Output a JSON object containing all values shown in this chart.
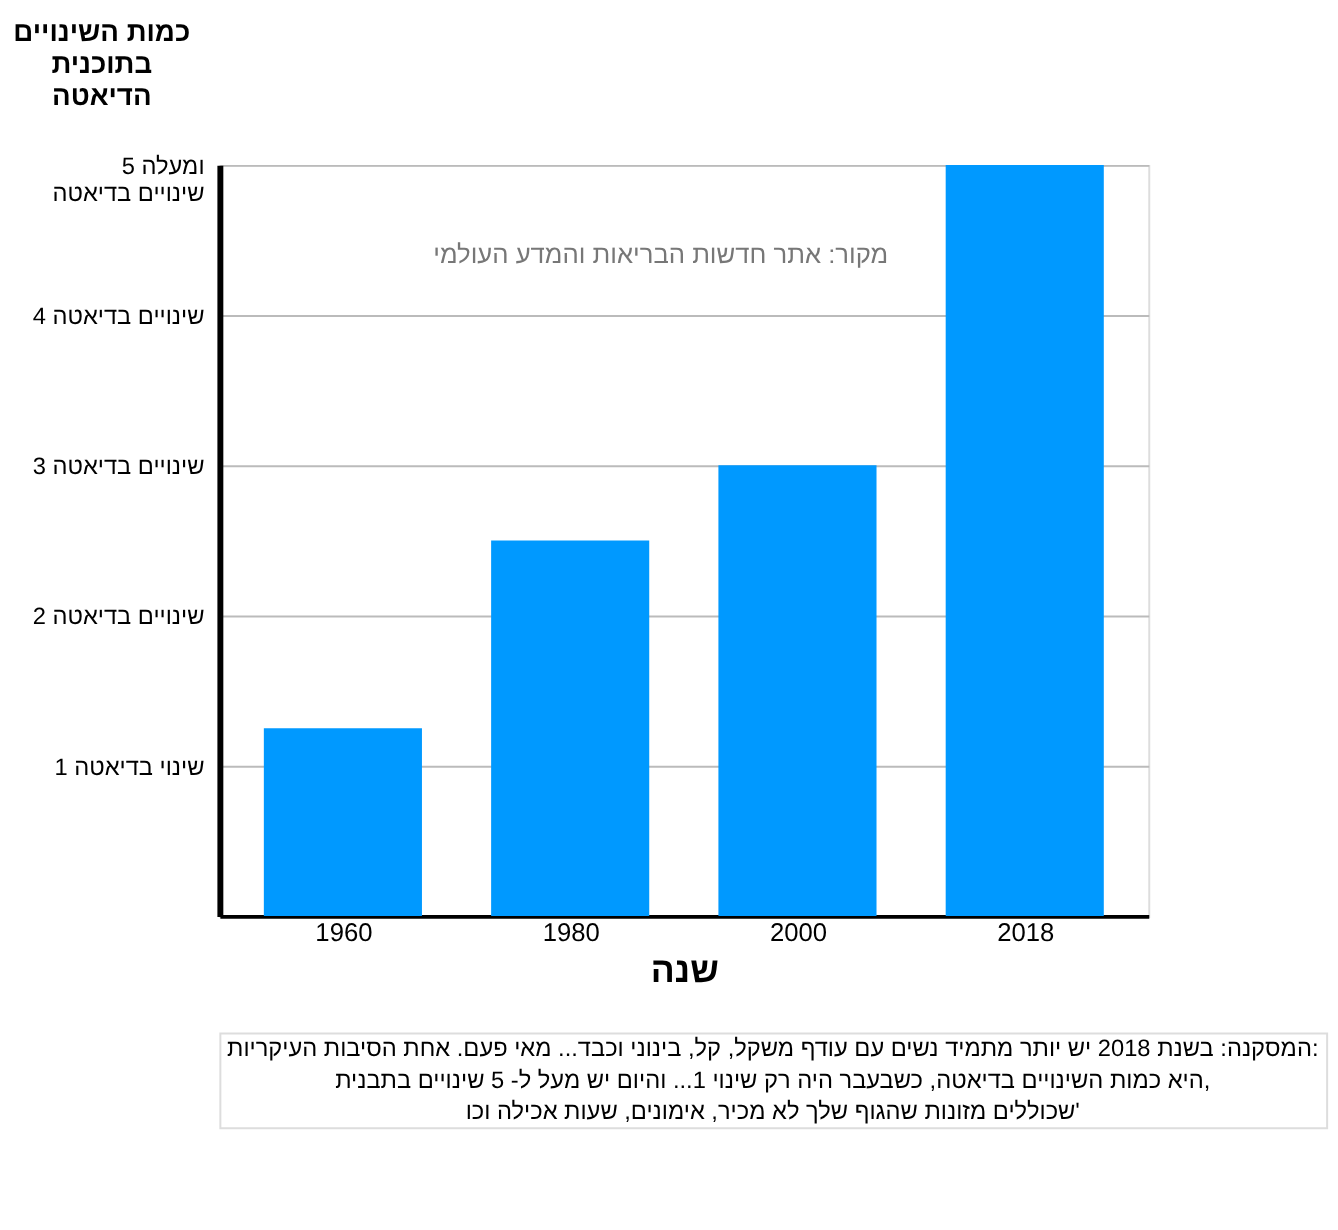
{
  "chart_data": {
    "type": "bar",
    "ylabel": "כמות השינויים\nבתוכנית\nהדיאטה",
    "xlabel": "שנה",
    "categories": [
      "1960",
      "1980",
      "2000",
      "2018"
    ],
    "values": [
      1.25,
      2.5,
      3.0,
      5.0
    ],
    "color": "#0099ff",
    "ylim": [
      0,
      5
    ],
    "yticks": [
      {
        "value": 1,
        "label": "1 שינוי בדיאטה"
      },
      {
        "value": 2,
        "label": "2 שינויים בדיאטה"
      },
      {
        "value": 3,
        "label": "3 שינויים בדיאטה"
      },
      {
        "value": 4,
        "label": "4 שינויים בדיאטה"
      },
      {
        "value": 5,
        "label": "5 ומעלה\nשינויים בדיאטה"
      }
    ],
    "grid": "y",
    "annotations": [
      "מקור: אתר חדשות הבריאות והמדע העולמי",
      "המסקנה: בשנת 2018 יש יותר מתמיד נשים עם עודף משקל, קל, בינוני וכבד... מאי פעם. אחת הסיבות העיקריות:\nהיא כמות השינויים בדיאטה, כשבעבר היה רק שינוי 1... והיום יש מעל ל- 5 שינויים בתבנית,\nשכוללים מזונות שהגוף שלך לא מכיר, אימונים, שעות אכילה וכו'"
    ]
  }
}
